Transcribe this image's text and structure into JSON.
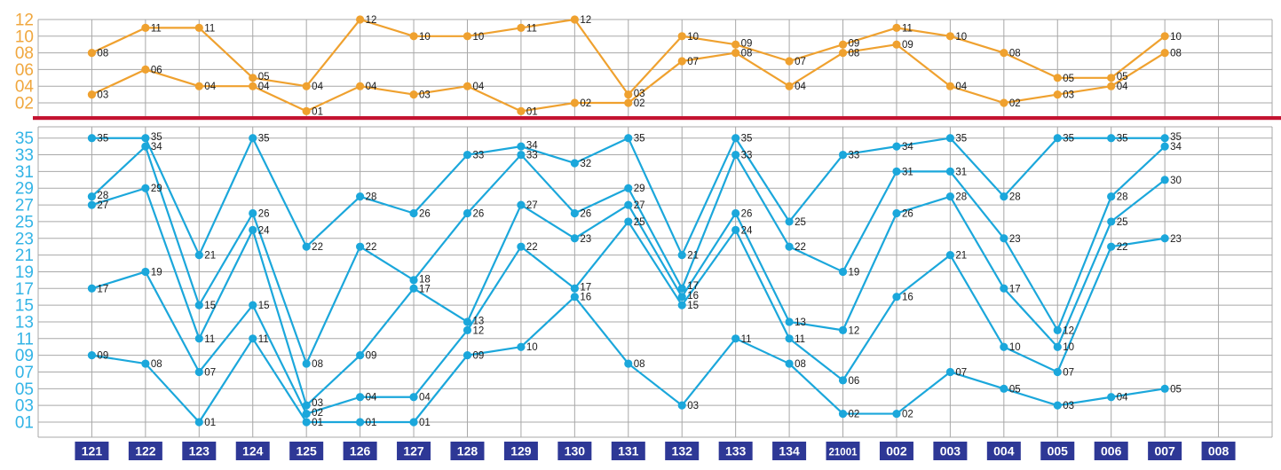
{
  "colors": {
    "orange_line": "#EFA12F",
    "orange_axis_text": "#F0A73E",
    "cyan_line": "#1BA7DB",
    "cyan_axis_text": "#33B4E6",
    "navy_period_box": "#2E3896",
    "period_text": "#FFFFFF",
    "separator_red": "#C41331",
    "grid_gray": "#A8A8A8",
    "point_label_text": "#1A1A1A",
    "background": "#FFFFFF"
  },
  "chart_data": {
    "type": "line",
    "title": "",
    "description": "Lottery draw trend chart: upper zone shows 2 back-area numbers (01-12, orange), lower zone shows 5 front-area numbers (01-35, cyan) per draw period; numbers of consecutive periods are connected rank-to-rank.",
    "legend": false,
    "grid": true,
    "periods": [
      "121",
      "122",
      "123",
      "124",
      "125",
      "126",
      "127",
      "128",
      "129",
      "130",
      "131",
      "132",
      "133",
      "134",
      "21001",
      "002",
      "003",
      "004",
      "005",
      "006",
      "007",
      "008"
    ],
    "top_zone": {
      "name": "back-zone",
      "value_range": [
        1,
        12
      ],
      "axis_ticks": [
        "12",
        "10",
        "08",
        "06",
        "04",
        "02"
      ],
      "values_by_period": [
        [
          8,
          3
        ],
        [
          11,
          6
        ],
        [
          11,
          4
        ],
        [
          5,
          4
        ],
        [
          4,
          1
        ],
        [
          12,
          4
        ],
        [
          10,
          3
        ],
        [
          10,
          4
        ],
        [
          11,
          1
        ],
        [
          12,
          2
        ],
        [
          3,
          2
        ],
        [
          10,
          7
        ],
        [
          9,
          8
        ],
        [
          7,
          4
        ],
        [
          9,
          8
        ],
        [
          11,
          9
        ],
        [
          10,
          4
        ],
        [
          8,
          2
        ],
        [
          5,
          3
        ],
        [
          5,
          4
        ],
        [
          10,
          8
        ],
        []
      ]
    },
    "bottom_zone": {
      "name": "front-zone",
      "value_range": [
        1,
        35
      ],
      "axis_ticks": [
        "35",
        "33",
        "31",
        "29",
        "27",
        "25",
        "23",
        "21",
        "19",
        "17",
        "15",
        "13",
        "11",
        "09",
        "07",
        "05",
        "03",
        "01"
      ],
      "values_by_period": [
        [
          35,
          28,
          27,
          17,
          9
        ],
        [
          35,
          34,
          29,
          19,
          8
        ],
        [
          21,
          15,
          11,
          7,
          1
        ],
        [
          35,
          26,
          24,
          15,
          11
        ],
        [
          22,
          8,
          3,
          2,
          1
        ],
        [
          28,
          22,
          9,
          4,
          1
        ],
        [
          26,
          18,
          17,
          4,
          1
        ],
        [
          33,
          26,
          13,
          12,
          9
        ],
        [
          34,
          33,
          27,
          22,
          10
        ],
        [
          32,
          26,
          23,
          17,
          16
        ],
        [
          35,
          29,
          27,
          25,
          8
        ],
        [
          21,
          17,
          16,
          15,
          3
        ],
        [
          35,
          33,
          26,
          24,
          11
        ],
        [
          25,
          22,
          13,
          11,
          8
        ],
        [
          33,
          19,
          12,
          6,
          2
        ],
        [
          34,
          31,
          26,
          16,
          2
        ],
        [
          35,
          31,
          28,
          21,
          7
        ],
        [
          28,
          23,
          17,
          10,
          5
        ],
        [
          35,
          12,
          10,
          7,
          3
        ],
        [
          35,
          28,
          25,
          22,
          4
        ],
        [
          35,
          34,
          30,
          23,
          5
        ],
        []
      ]
    }
  }
}
